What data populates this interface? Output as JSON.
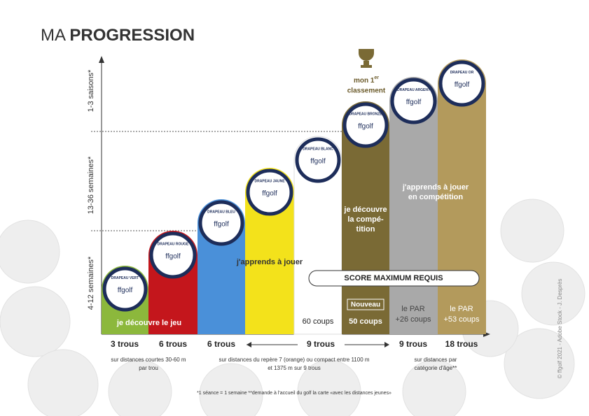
{
  "title": {
    "light": "MA",
    "bold": "PROGRESSION"
  },
  "axis_labels": [
    "1-3 saisons*",
    "13-36 semaines*",
    "4-12 semaines*"
  ],
  "brand": "ffgolf",
  "badges": [
    "DRAPEAU VERT",
    "DRAPEAU ROUGE",
    "DRAPEAU BLEU",
    "DRAPEAU JAUNE",
    "DRAPEAU BLANC",
    "DRAPEAU BRONZE",
    "DRAPEAU ARGENT",
    "DRAPEAU OR"
  ],
  "statements": {
    "discover": "je découvre le jeu",
    "learn": "j'apprends à jouer",
    "competition": [
      "je découvre",
      "la compé-",
      "tition"
    ],
    "learn_competition": [
      "j'apprends à jouer",
      "en compétition"
    ]
  },
  "ranking": {
    "text": "mon 1",
    "sup": "er",
    "line2": "classement"
  },
  "score_title": "SCORE MAXIMUM REQUIS",
  "scores": {
    "white": "60 coups",
    "new": "Nouveau",
    "bronze": "50 coups",
    "silver": [
      "le PAR",
      "+26 coups"
    ],
    "gold": [
      "le PAR",
      "+53 coups"
    ]
  },
  "holes": [
    "3 trous",
    "6 trous",
    "6 trous",
    "9 trous",
    "9 trous",
    "18 trous"
  ],
  "descriptions": [
    [
      "sur distances courtes 30-60 m",
      "par trou"
    ],
    [
      "sur distances du repère 7 (orange) ou compact entre 1100 m",
      "et 1375 m sur 9 trous"
    ],
    [
      "sur distances par",
      "catégorie d'âge**"
    ]
  ],
  "footnote": "*1 séance = 1 semaine **demande à l'accueil du golf la carte «avec les distances jeunes»",
  "copyright": "© ffgolf 2021 - Adobe Stock - J. Desprès"
}
